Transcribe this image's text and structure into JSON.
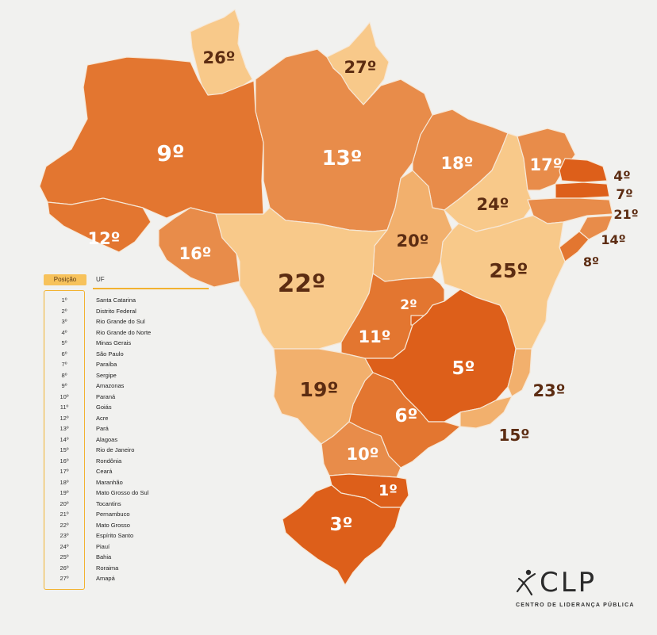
{
  "colors": {
    "tier1": "#dd5f1a",
    "tier2": "#e37630",
    "tier3": "#e88c4a",
    "tier4": "#f2b06d",
    "tier5": "#f8c98a",
    "accent": "#f2b230",
    "dark_label": "#5c2c12"
  },
  "map_labels": {
    "AC": "12º",
    "AM": "9º",
    "RR": "26º",
    "AP": "27º",
    "PA": "13º",
    "MA": "18º",
    "CE": "17º",
    "RN": "4º",
    "PB": "7º",
    "PE": "21º",
    "AL": "14º",
    "SE": "8º",
    "PI": "24º",
    "TO": "20º",
    "BA": "25º",
    "RO": "16º",
    "MT": "22º",
    "DF": "2º",
    "GO": "11º",
    "MS": "19º",
    "MG": "5º",
    "ES": "23º",
    "RJ": "15º",
    "SP": "6º",
    "PR": "10º",
    "SC": "1º",
    "RS": "3º"
  },
  "legend": {
    "header_position": "Posição",
    "header_uf": "UF",
    "rows": [
      {
        "pos": "1º",
        "uf": "Santa Catarina"
      },
      {
        "pos": "2º",
        "uf": "Distrito Federal"
      },
      {
        "pos": "3º",
        "uf": "Rio Grande do Sul"
      },
      {
        "pos": "4º",
        "uf": "Rio Grande do Norte"
      },
      {
        "pos": "5º",
        "uf": "Minas Gerais"
      },
      {
        "pos": "6º",
        "uf": "São Paulo"
      },
      {
        "pos": "7º",
        "uf": "Paraíba"
      },
      {
        "pos": "8º",
        "uf": "Sergipe"
      },
      {
        "pos": "9º",
        "uf": "Amazonas"
      },
      {
        "pos": "10º",
        "uf": "Paraná"
      },
      {
        "pos": "11º",
        "uf": "Goiás"
      },
      {
        "pos": "12º",
        "uf": "Acre"
      },
      {
        "pos": "13º",
        "uf": "Pará"
      },
      {
        "pos": "14º",
        "uf": "Alagoas"
      },
      {
        "pos": "15º",
        "uf": "Rio de Janeiro"
      },
      {
        "pos": "16º",
        "uf": "Rondônia"
      },
      {
        "pos": "17º",
        "uf": "Ceará"
      },
      {
        "pos": "18º",
        "uf": "Maranhão"
      },
      {
        "pos": "19º",
        "uf": "Mato Grosso do Sul"
      },
      {
        "pos": "20º",
        "uf": "Tocantins"
      },
      {
        "pos": "21º",
        "uf": "Pernambuco"
      },
      {
        "pos": "22º",
        "uf": "Mato Grosso"
      },
      {
        "pos": "23º",
        "uf": "Espírito Santo"
      },
      {
        "pos": "24º",
        "uf": "Piauí"
      },
      {
        "pos": "25º",
        "uf": "Bahia"
      },
      {
        "pos": "26º",
        "uf": "Roraima"
      },
      {
        "pos": "27º",
        "uf": "Amapá"
      }
    ]
  },
  "logo": {
    "text": "CLP",
    "subtitle": "CENTRO DE LIDERANÇA PÚBLICA"
  }
}
